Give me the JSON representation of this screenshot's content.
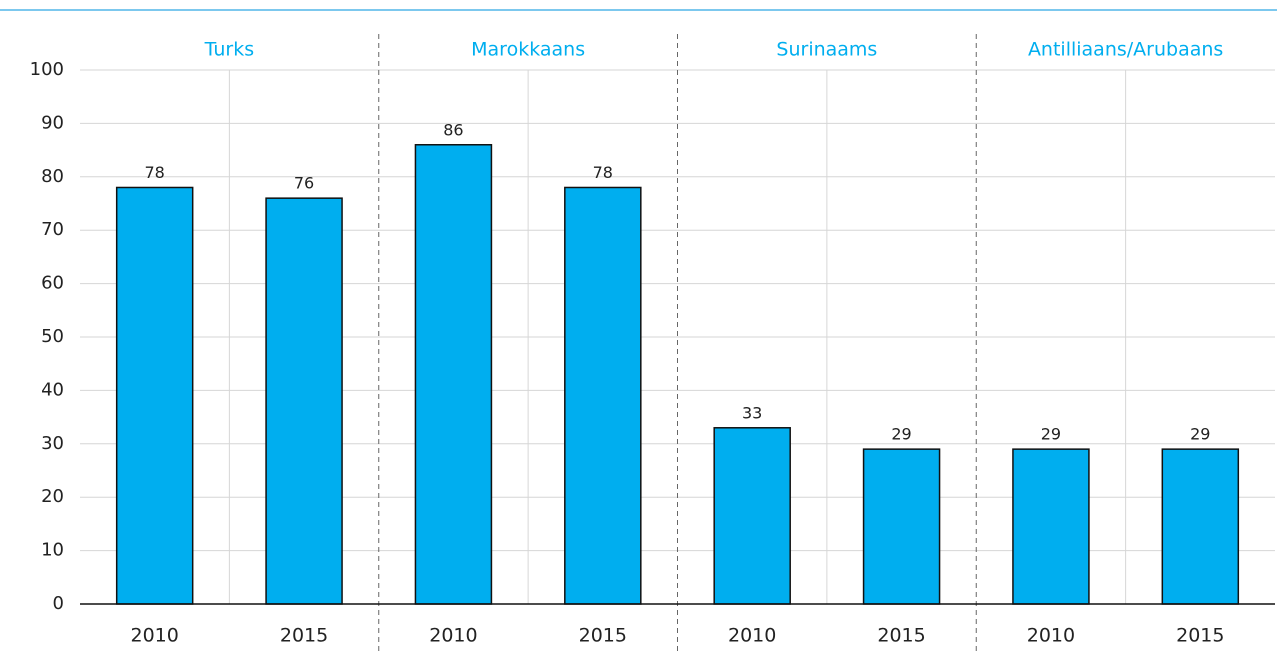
{
  "chart_data": {
    "type": "bar",
    "color": "#00aeef",
    "groups": [
      {
        "name": "Turks",
        "categories": [
          "2010",
          "2015"
        ],
        "values": [
          78,
          76
        ]
      },
      {
        "name": "Marokkaans",
        "categories": [
          "2010",
          "2015"
        ],
        "values": [
          86,
          78
        ]
      },
      {
        "name": "Surinaams",
        "categories": [
          "2010",
          "2015"
        ],
        "values": [
          33,
          29
        ]
      },
      {
        "name": "Antilliaans/Arubaans",
        "categories": [
          "2010",
          "2015"
        ],
        "values": [
          29,
          29
        ]
      }
    ],
    "ylim": [
      0,
      100
    ],
    "yticks": [
      0,
      10,
      20,
      30,
      40,
      50,
      60,
      70,
      80,
      90,
      100
    ],
    "grid": true
  }
}
